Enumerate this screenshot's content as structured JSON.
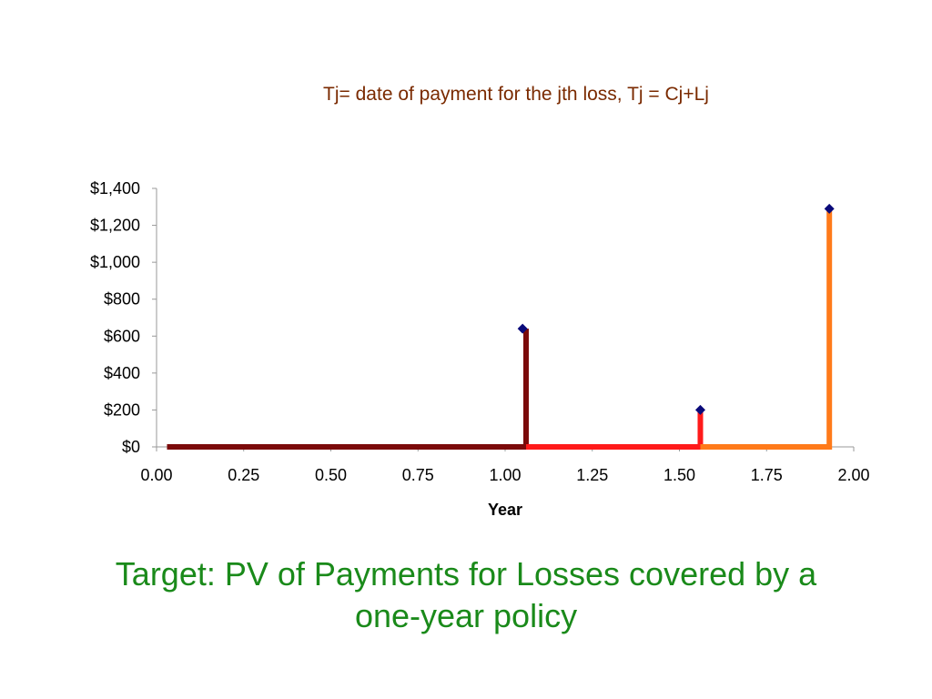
{
  "subtitle": "Tj= date of payment for the jth loss, Tj = Cj+Lj",
  "slide_title": {
    "line1": "Target:  PV of Payments for Losses covered by a",
    "line2": "one-year policy"
  },
  "colors": {
    "subtitle": "#7a2a00",
    "title": "#1a8a1a",
    "segment_1": "#7b0a0a",
    "segment_2": "#ff1a1a",
    "segment_3": "#ff7a1a",
    "marker": "#0a0a7a",
    "axis": "#999999"
  },
  "chart_data": {
    "type": "line",
    "xlabel": "Year",
    "ylabel": "",
    "xlim": [
      0,
      2
    ],
    "ylim": [
      0,
      1400
    ],
    "x_ticks": [
      "0.00",
      "0.25",
      "0.50",
      "0.75",
      "1.00",
      "1.25",
      "1.50",
      "1.75",
      "2.00"
    ],
    "y_ticks": [
      "$0",
      "$200",
      "$400",
      "$600",
      "$800",
      "$1,000",
      "$1,200",
      "$1,400"
    ],
    "grid": false,
    "legend": "none",
    "series": [
      {
        "color": "#7b0a0a",
        "points": [
          [
            0.03,
            0
          ],
          [
            1.06,
            0
          ],
          [
            1.06,
            640
          ]
        ]
      },
      {
        "color": "#ff1a1a",
        "points": [
          [
            1.06,
            0
          ],
          [
            1.56,
            0
          ],
          [
            1.56,
            200
          ]
        ]
      },
      {
        "color": "#ff7a1a",
        "points": [
          [
            1.56,
            0
          ],
          [
            1.93,
            0
          ],
          [
            1.93,
            1290
          ]
        ]
      }
    ],
    "payments": [
      {
        "x": 1.05,
        "y": 640
      },
      {
        "x": 1.56,
        "y": 200
      },
      {
        "x": 1.93,
        "y": 1290
      }
    ]
  }
}
